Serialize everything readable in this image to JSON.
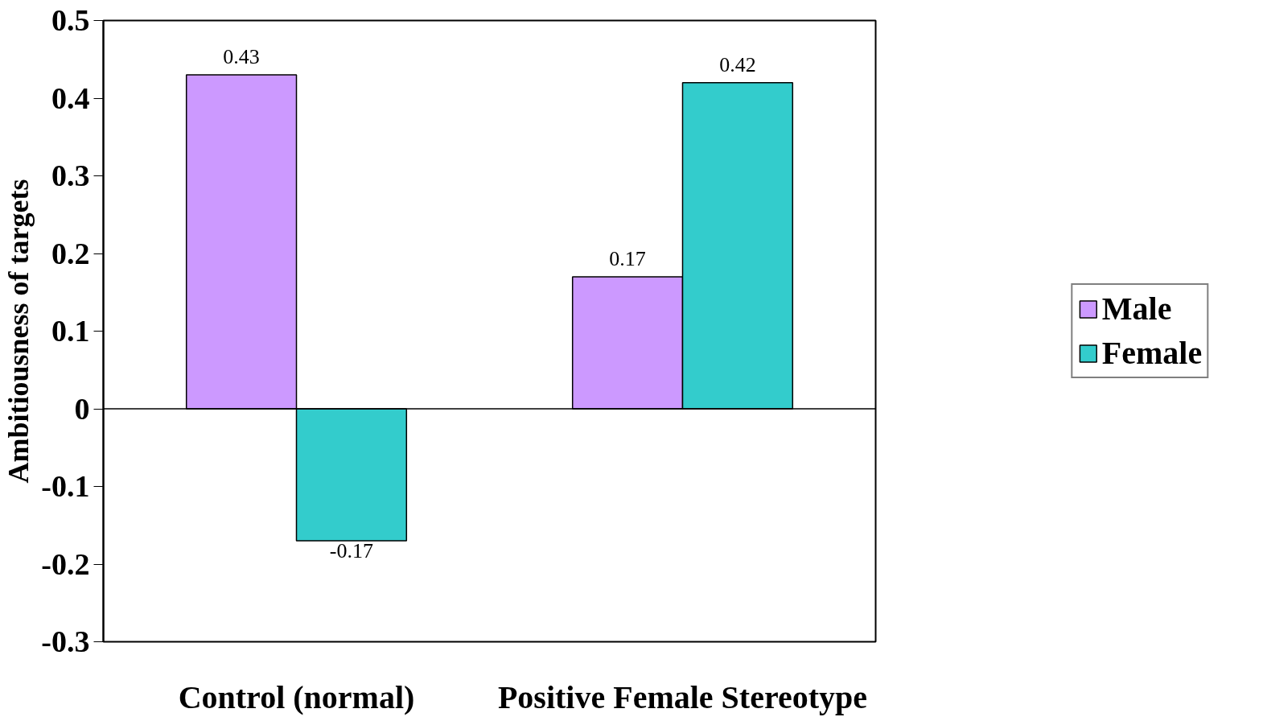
{
  "chart_data": {
    "type": "bar",
    "ylabel": "Ambitiousness of targets",
    "categories": [
      "Control (normal)",
      "Positive Female Stereotype"
    ],
    "series": [
      {
        "name": "Male",
        "color": "#cc99ff",
        "values": [
          0.43,
          0.17
        ]
      },
      {
        "name": "Female",
        "color": "#33cccc",
        "values": [
          -0.17,
          0.42
        ]
      }
    ],
    "ylim": [
      -0.3,
      0.5
    ],
    "yticks": [
      -0.3,
      -0.2,
      -0.1,
      0,
      0.1,
      0.2,
      0.3,
      0.4,
      0.5
    ],
    "legend": "right",
    "data_labels": true
  }
}
